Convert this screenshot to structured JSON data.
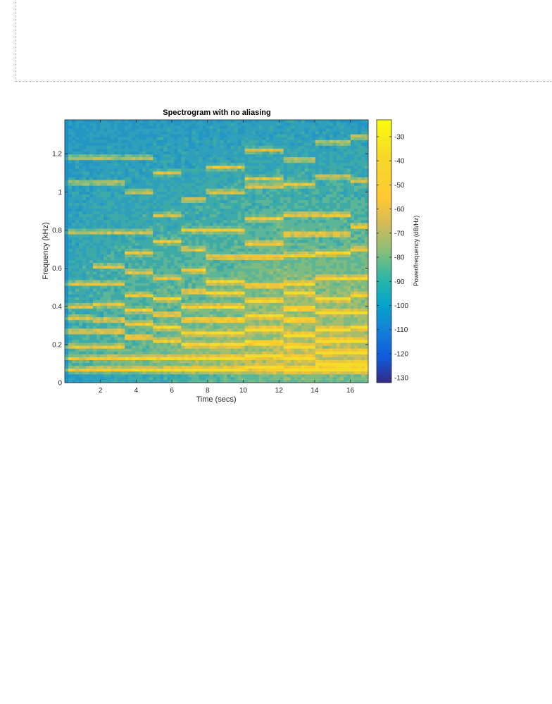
{
  "chart_data": {
    "type": "heatmap",
    "title": "Spectrogram with no aliasing",
    "xlabel": "Time (secs)",
    "ylabel": "Frequency (kHz)",
    "colorbar_label": "Power/frequency (dB/Hz)",
    "xlim": [
      0,
      17
    ],
    "ylim": [
      0,
      1.378
    ],
    "x_ticks": [
      2,
      4,
      6,
      8,
      10,
      12,
      14,
      16
    ],
    "x_tick_labels": [
      "2",
      "4",
      "6",
      "8",
      "10",
      "12",
      "14",
      "16"
    ],
    "y_ticks": [
      0,
      0.2,
      0.4,
      0.6,
      0.8,
      1.0,
      1.2
    ],
    "y_tick_labels": [
      "0",
      "0.2",
      "0.4",
      "0.6",
      "0.8",
      "1",
      "1.2"
    ],
    "clim": [
      -132,
      -23
    ],
    "colorbar_ticks": [
      -30,
      -40,
      -50,
      -60,
      -70,
      -80,
      -90,
      -100,
      -110,
      -120,
      -130
    ],
    "colorbar_tick_labels": [
      "-30",
      "-40",
      "-50",
      "-60",
      "-70",
      "-80",
      "-90",
      "-100",
      "-110",
      "-120",
      "-130"
    ],
    "colormap": "parula",
    "grid": false,
    "segments": [
      {
        "t_start": 0.0,
        "t_end": 1.5,
        "bands_khz": [
          0.07,
          0.13,
          0.19,
          0.27,
          0.34,
          0.4,
          0.52,
          0.79,
          1.05,
          1.18
        ]
      },
      {
        "t_start": 1.5,
        "t_end": 3.4,
        "bands_khz": [
          0.07,
          0.13,
          0.19,
          0.27,
          0.33,
          0.41,
          0.52,
          0.61,
          0.79,
          1.05,
          1.18
        ]
      },
      {
        "t_start": 3.4,
        "t_end": 5.0,
        "bands_khz": [
          0.07,
          0.13,
          0.24,
          0.31,
          0.38,
          0.46,
          0.58,
          0.68,
          0.79,
          1.0,
          1.18
        ]
      },
      {
        "t_start": 5.0,
        "t_end": 6.5,
        "bands_khz": [
          0.07,
          0.13,
          0.22,
          0.29,
          0.36,
          0.44,
          0.55,
          0.74,
          0.88,
          1.1
        ]
      },
      {
        "t_start": 6.5,
        "t_end": 8.0,
        "bands_khz": [
          0.07,
          0.13,
          0.2,
          0.26,
          0.33,
          0.4,
          0.48,
          0.59,
          0.7,
          0.8,
          0.96
        ]
      },
      {
        "t_start": 8.0,
        "t_end": 10.0,
        "bands_khz": [
          0.07,
          0.13,
          0.2,
          0.26,
          0.33,
          0.4,
          0.47,
          0.53,
          0.66,
          0.8,
          1.0,
          1.13
        ]
      },
      {
        "t_start": 10.0,
        "t_end": 12.3,
        "bands_khz": [
          0.08,
          0.14,
          0.21,
          0.28,
          0.35,
          0.43,
          0.51,
          0.66,
          0.73,
          0.86,
          1.03,
          1.07,
          1.22
        ]
      },
      {
        "t_start": 12.3,
        "t_end": 14.0,
        "bands_khz": [
          0.07,
          0.13,
          0.19,
          0.25,
          0.33,
          0.39,
          0.47,
          0.52,
          0.67,
          0.78,
          0.88,
          1.04,
          1.17
        ]
      },
      {
        "t_start": 14.0,
        "t_end": 16.0,
        "bands_khz": [
          0.07,
          0.1,
          0.16,
          0.22,
          0.28,
          0.37,
          0.44,
          0.55,
          0.68,
          0.78,
          0.88,
          1.08,
          1.26
        ]
      },
      {
        "t_start": 16.0,
        "t_end": 17.0,
        "bands_khz": [
          0.07,
          0.1,
          0.16,
          0.22,
          0.29,
          0.37,
          0.46,
          0.55,
          0.7,
          0.82,
          1.06,
          1.29
        ]
      }
    ]
  }
}
